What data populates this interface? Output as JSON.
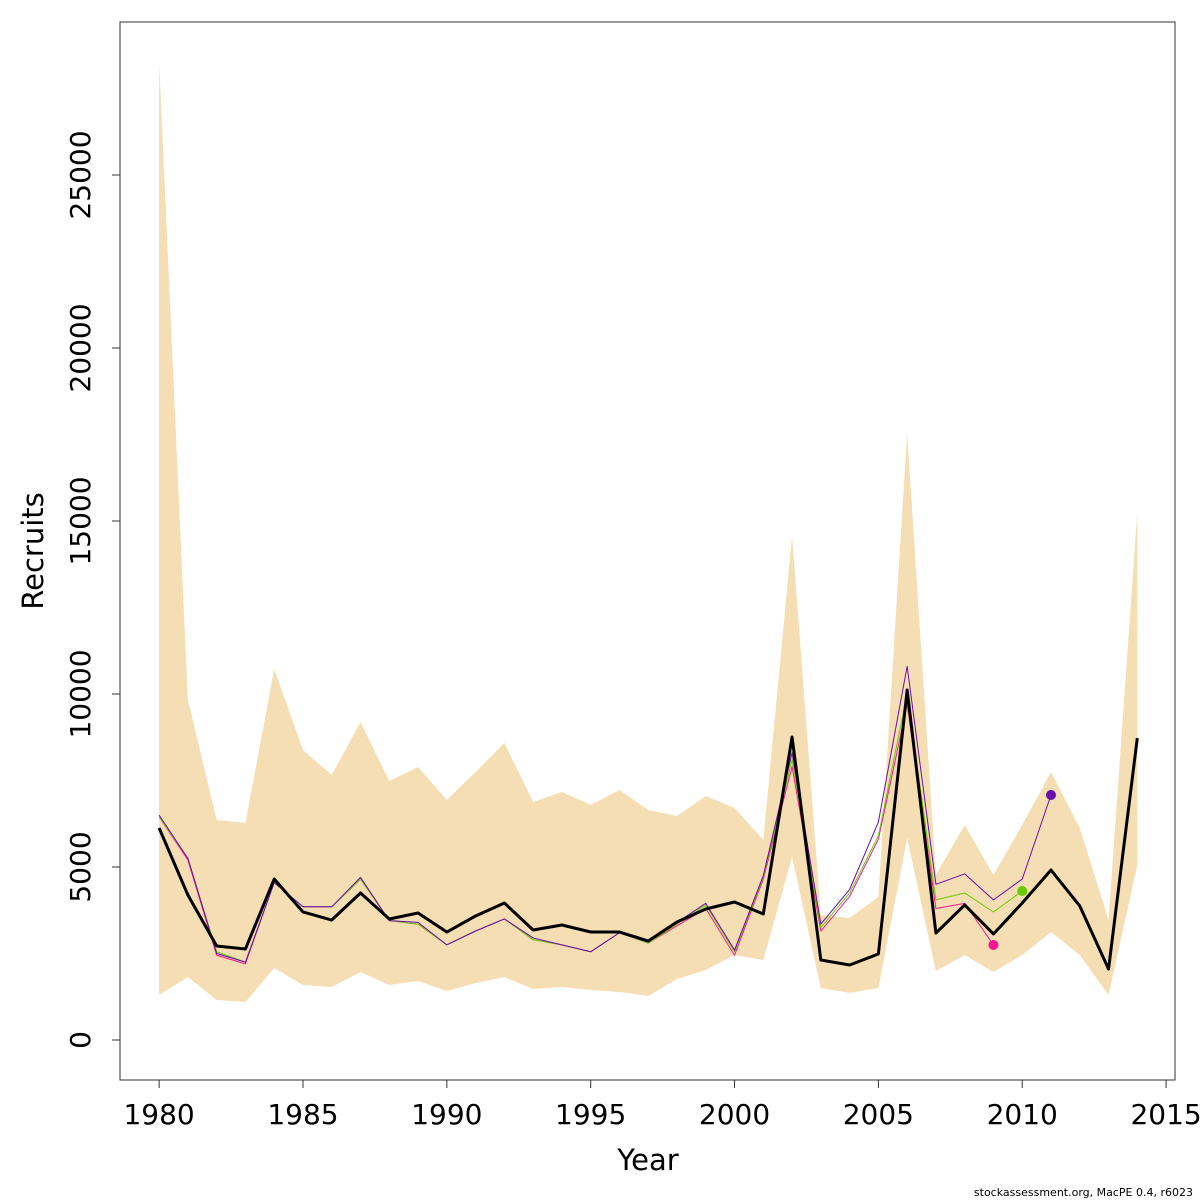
{
  "chart_data": {
    "type": "line",
    "x_label": "Year",
    "y_label": "Recruits",
    "footer": "stockassessment.org, MacPE 0.4, r6023",
    "x": [
      1980,
      1981,
      1982,
      1983,
      1984,
      1985,
      1986,
      1987,
      1988,
      1989,
      1990,
      1991,
      1992,
      1993,
      1994,
      1995,
      1996,
      1997,
      1998,
      1999,
      2000,
      2001,
      2002,
      2003,
      2004,
      2005,
      2006,
      2007,
      2008,
      2009,
      2010,
      2011,
      2012,
      2013,
      2014
    ],
    "xlim": [
      1978.64,
      2015.31
    ],
    "xticks": [
      1980,
      1985,
      1990,
      1995,
      2000,
      2005,
      2010,
      2015
    ],
    "ylim": [
      -1156,
      29422
    ],
    "yticks": [
      0,
      5000,
      10000,
      15000,
      20000,
      25000
    ],
    "band": {
      "color": "#f5deb3",
      "upper": [
        28266,
        9827,
        6358,
        6272,
        10723,
        8382,
        7659,
        9191,
        7486,
        7890,
        6936,
        7746,
        8584,
        6879,
        7168,
        6792,
        7225,
        6647,
        6474,
        7052,
        6705,
        5780,
        14566,
        3613,
        3526,
        4133,
        17543,
        4769,
        6214,
        4769,
        6214,
        7746,
        6127,
        3468,
        15260
      ],
      "lower": [
        1301,
        1821,
        1156,
        1098,
        2081,
        1590,
        1532,
        1965,
        1590,
        1705,
        1416,
        1647,
        1821,
        1474,
        1532,
        1445,
        1387,
        1272,
        1763,
        2023,
        2457,
        2312,
        5289,
        1503,
        1358,
        1503,
        5838,
        1994,
        2457,
        1965,
        2457,
        3121,
        2457,
        1301,
        5058
      ]
    },
    "series": [
      {
        "color": "#ff1493",
        "marker_last": true,
        "width": 1,
        "values": [
          6450,
          5200,
          2450,
          2200,
          4550,
          3850,
          3850,
          4650,
          3450,
          3350,
          2750,
          3150,
          3500,
          2900,
          2750,
          2550,
          3100,
          2800,
          3300,
          3800,
          2450,
          4650,
          7900,
          3150,
          4150,
          5800,
          9700,
          3800,
          3950,
          2746,
          null,
          null,
          null,
          null,
          null
        ]
      },
      {
        "color": "#66cc00",
        "marker_last": true,
        "width": 1,
        "values": [
          6450,
          5250,
          2550,
          2250,
          4550,
          3850,
          3850,
          4650,
          3450,
          3350,
          2750,
          3150,
          3500,
          2900,
          2750,
          2550,
          3100,
          2800,
          3350,
          3900,
          2550,
          4700,
          8100,
          3250,
          4250,
          5900,
          10000,
          4050,
          4250,
          3700,
          4306,
          null,
          null,
          null,
          null
        ]
      },
      {
        "color": "#6a0dad",
        "marker_last": true,
        "width": 1,
        "values": [
          6500,
          5250,
          2500,
          2250,
          4550,
          3850,
          3850,
          4700,
          3450,
          3400,
          2750,
          3150,
          3500,
          2950,
          2750,
          2550,
          3100,
          2850,
          3400,
          3950,
          2600,
          4750,
          8300,
          3350,
          4350,
          6300,
          10800,
          4500,
          4800,
          4050,
          4650,
          7081,
          null,
          null,
          null
        ]
      },
      {
        "color": "#000000",
        "marker_last": false,
        "width": 3,
        "values": [
          6127,
          4190,
          2717,
          2630,
          4653,
          3700,
          3468,
          4249,
          3497,
          3671,
          3121,
          3584,
          3960,
          3179,
          3324,
          3121,
          3121,
          2861,
          3410,
          3786,
          3988,
          3642,
          8757,
          2312,
          2168,
          2486,
          10116,
          3092,
          3902,
          3064,
          3960,
          4913,
          3873,
          2052,
          8728
        ]
      }
    ]
  }
}
